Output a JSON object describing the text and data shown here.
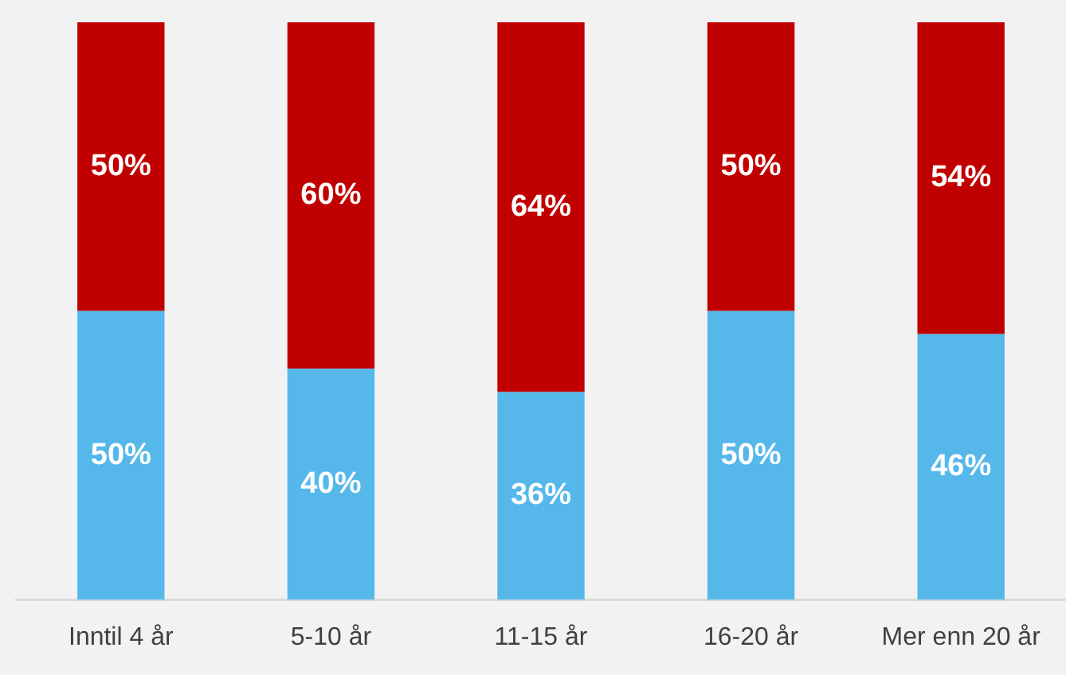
{
  "chart_data": {
    "type": "bar",
    "stacked": true,
    "categories": [
      "Inntil 4 år",
      "5-10 år",
      "11-15 år",
      "16-20 år",
      "Mer enn 20 år"
    ],
    "series": [
      {
        "color": "#56b8ea",
        "values": [
          50,
          40,
          36,
          50,
          46
        ],
        "value_labels": [
          "50%",
          "40%",
          "36%",
          "50%",
          "46%"
        ]
      },
      {
        "color": "#c00000",
        "values": [
          50,
          60,
          64,
          50,
          54
        ],
        "value_labels": [
          "50%",
          "60%",
          "64%",
          "50%",
          "54%"
        ]
      }
    ],
    "ylim": [
      0,
      100
    ],
    "tick_labels": "x",
    "grid": false,
    "legend": false
  }
}
